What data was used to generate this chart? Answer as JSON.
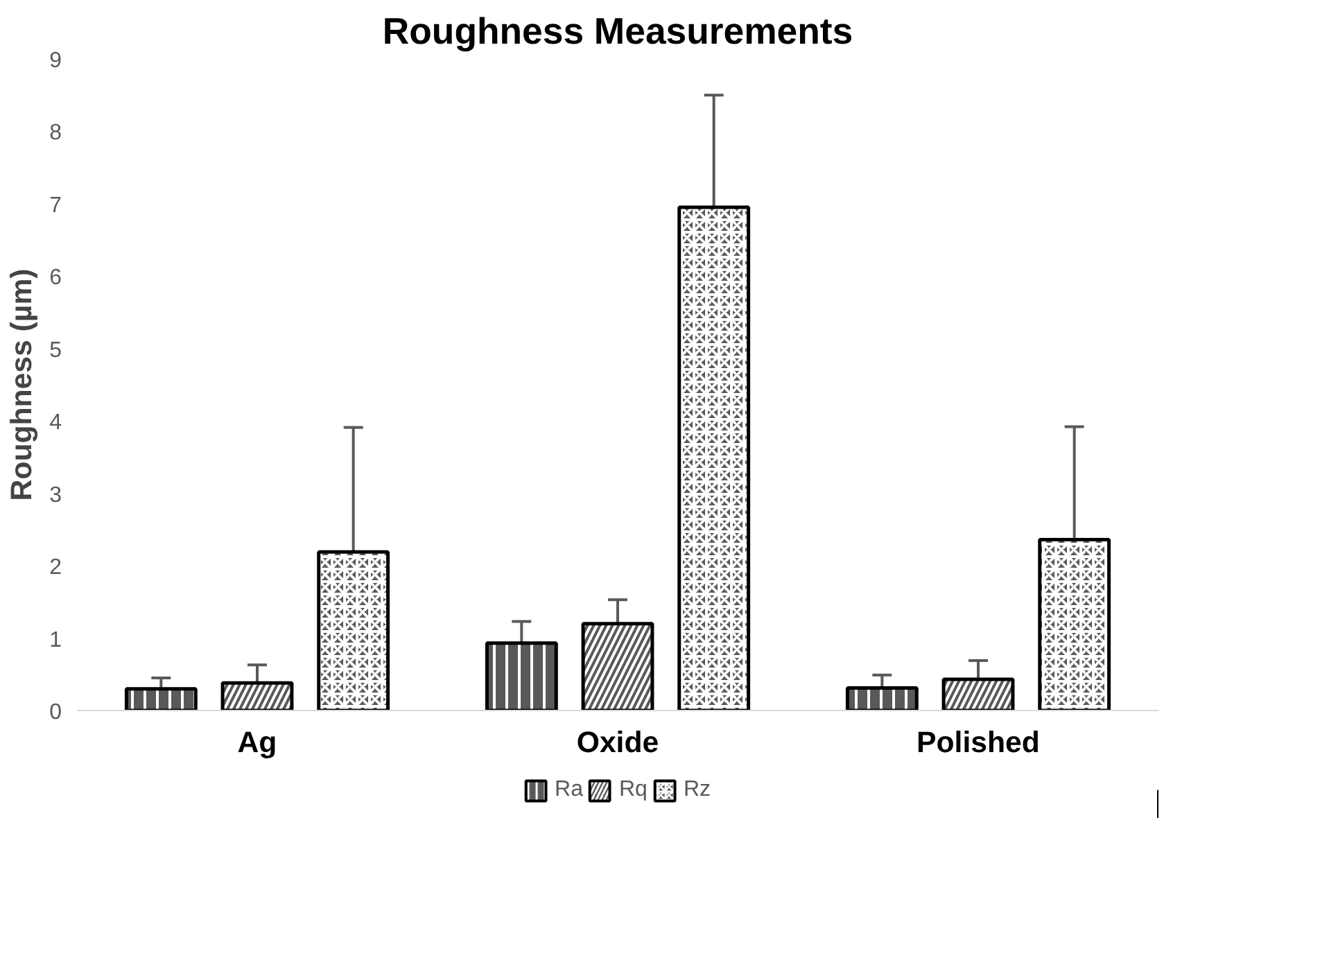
{
  "chart_data": {
    "type": "bar",
    "title": "Roughness Measurements",
    "ylabel": "Roughness (µm)",
    "categories": [
      "Ag",
      "Oxide",
      "Polished"
    ],
    "series": [
      {
        "name": "Ra",
        "color": "#595959",
        "values": [
          0.3,
          0.93,
          0.31
        ],
        "errors": [
          0.15,
          0.3,
          0.18
        ]
      },
      {
        "name": "Rq",
        "color": "#595959",
        "values": [
          0.38,
          1.2,
          0.43
        ],
        "errors": [
          0.25,
          0.33,
          0.26
        ]
      },
      {
        "name": "Rz",
        "color": "#595959",
        "values": [
          2.19,
          6.95,
          2.36
        ],
        "errors": [
          1.72,
          1.55,
          1.56
        ]
      }
    ],
    "ylim": [
      0,
      9
    ],
    "yticks": [
      0,
      1,
      2,
      3,
      4,
      5,
      6,
      7,
      8,
      9
    ],
    "grid": false,
    "legend": "bottom"
  }
}
